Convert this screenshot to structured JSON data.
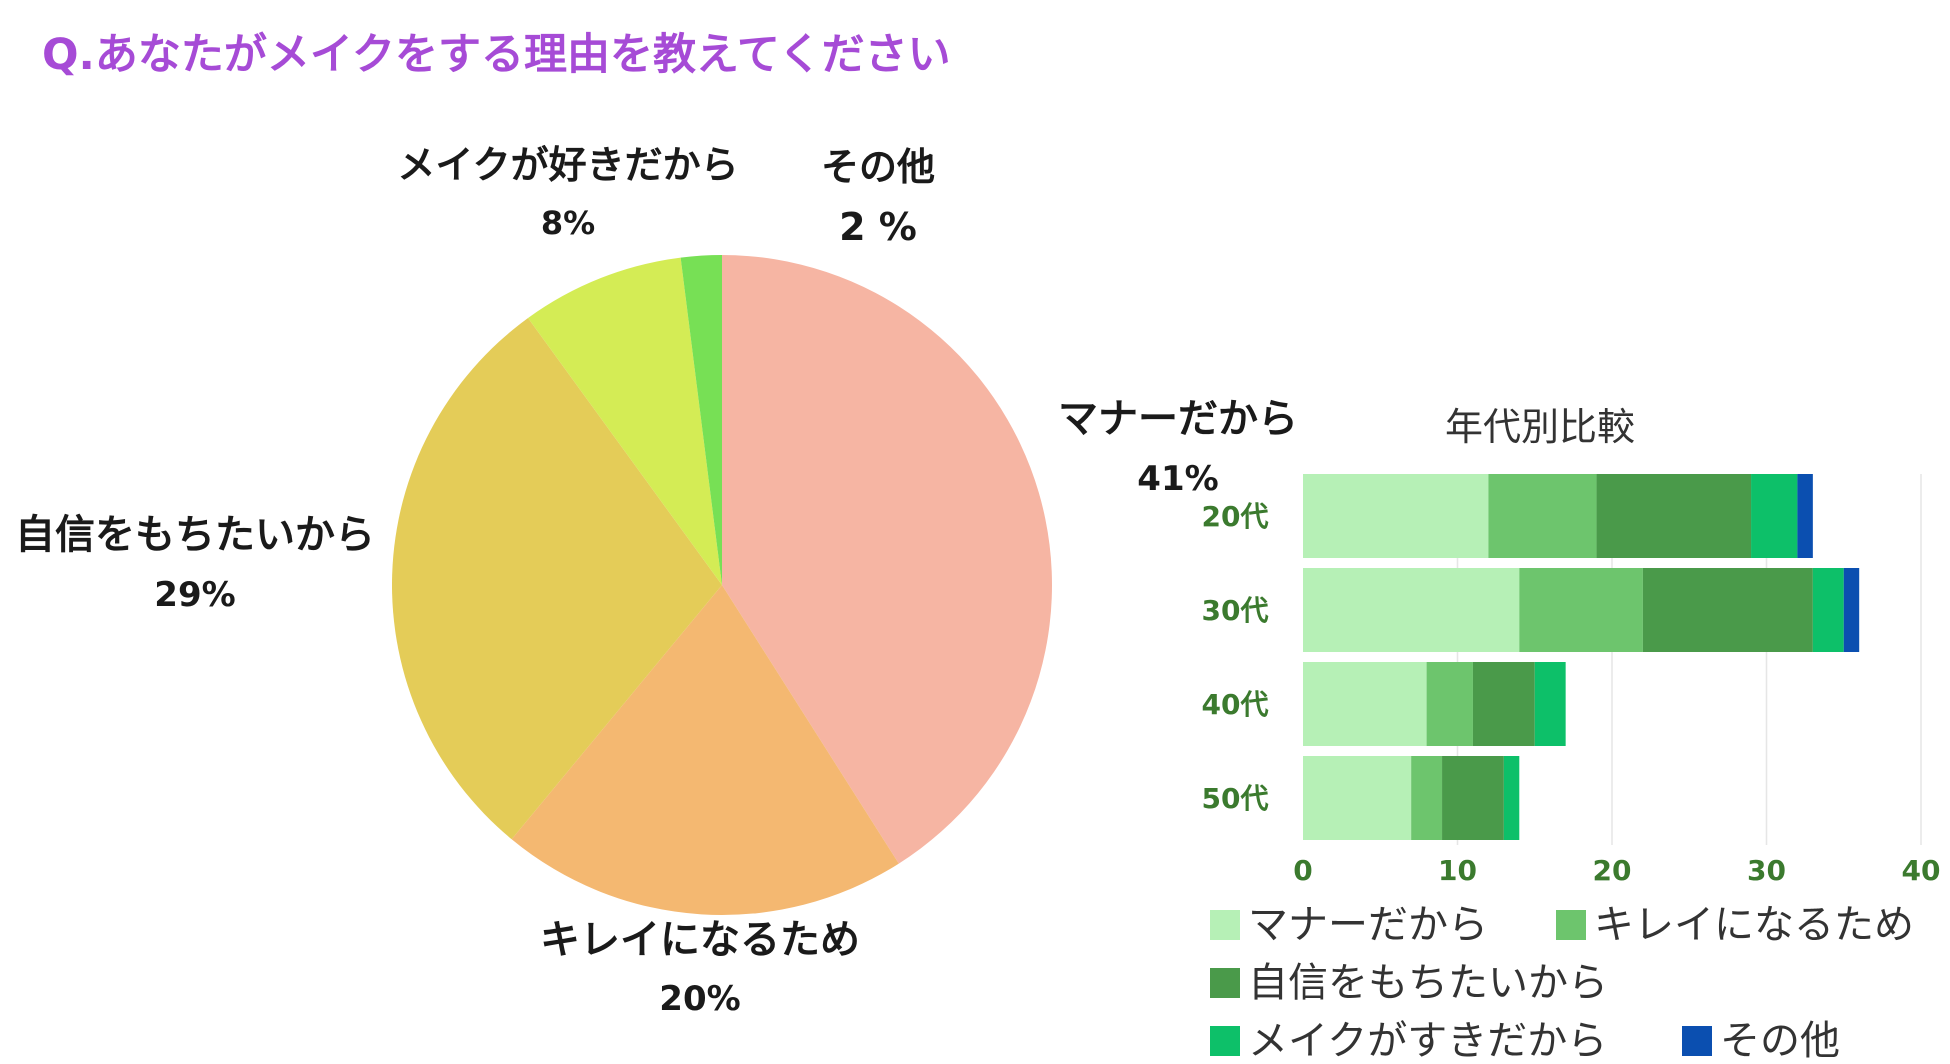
{
  "page_title": "Q.あなたがメイクをする理由を教えてください",
  "chart_data": [
    {
      "type": "pie",
      "title": "",
      "slices": [
        {
          "label": "マナーだから",
          "value": 41,
          "value_label": "41%",
          "color": "#f6b5a3"
        },
        {
          "label": "キレイになるため",
          "value": 20,
          "value_label": "20%",
          "color": "#f4b871"
        },
        {
          "label": "自信をもちたいから",
          "value": 29,
          "value_label": "29%",
          "color": "#e4cc58"
        },
        {
          "label": "メイクが好きだから",
          "value": 8,
          "value_label": "8%",
          "color": "#d4ec55"
        },
        {
          "label": "その他",
          "value": 2,
          "value_label": "2 %",
          "color": "#77e055"
        }
      ]
    },
    {
      "type": "bar",
      "orientation": "horizontal",
      "stacked": true,
      "title": "年代別比較",
      "categories": [
        "20代",
        "30代",
        "40代",
        "50代"
      ],
      "xlim": [
        0,
        40
      ],
      "xticks": [
        "0",
        "10",
        "20",
        "30",
        "40"
      ],
      "grid": true,
      "legend_position": "bottom",
      "series": [
        {
          "name": "マナーだから",
          "color": "#b6f0b6",
          "values": [
            12,
            14,
            8,
            7
          ]
        },
        {
          "name": "キレイになるため",
          "color": "#6dc56d",
          "values": [
            7,
            8,
            3,
            2
          ]
        },
        {
          "name": "自信をもちたいから",
          "color": "#4a9a4a",
          "values": [
            10,
            11,
            4,
            4
          ]
        },
        {
          "name": "メイクがすきだから",
          "color": "#0dc069",
          "values": [
            3,
            2,
            2,
            1
          ]
        },
        {
          "name": "その他",
          "color": "#0b4fb0",
          "values": [
            1,
            1,
            0,
            0
          ]
        }
      ]
    }
  ]
}
